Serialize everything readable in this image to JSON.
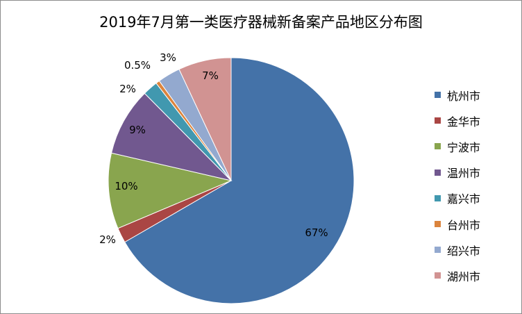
{
  "chart_data": {
    "type": "pie",
    "title": "2019年7月第一类医疗器械新备案产品地区分布图",
    "start_angle_deg": 0,
    "direction": "clockwise",
    "legend_position": "right",
    "slices": [
      {
        "name": "杭州市",
        "value": 67,
        "label": "67%",
        "color": "#4472a8"
      },
      {
        "name": "金华市",
        "value": 2,
        "label": "2%",
        "color": "#aa4644"
      },
      {
        "name": "宁波市",
        "value": 10,
        "label": "10%",
        "color": "#89a54e"
      },
      {
        "name": "温州市",
        "value": 9,
        "label": "9%",
        "color": "#71588f"
      },
      {
        "name": "嘉兴市",
        "value": 2,
        "label": "2%",
        "color": "#4198af"
      },
      {
        "name": "台州市",
        "value": 0.5,
        "label": "0.5%",
        "color": "#db843d"
      },
      {
        "name": "绍兴市",
        "value": 3,
        "label": "3%",
        "color": "#93a9cf"
      },
      {
        "name": "湖州市",
        "value": 7,
        "label": "7%",
        "color": "#d19392"
      }
    ]
  }
}
